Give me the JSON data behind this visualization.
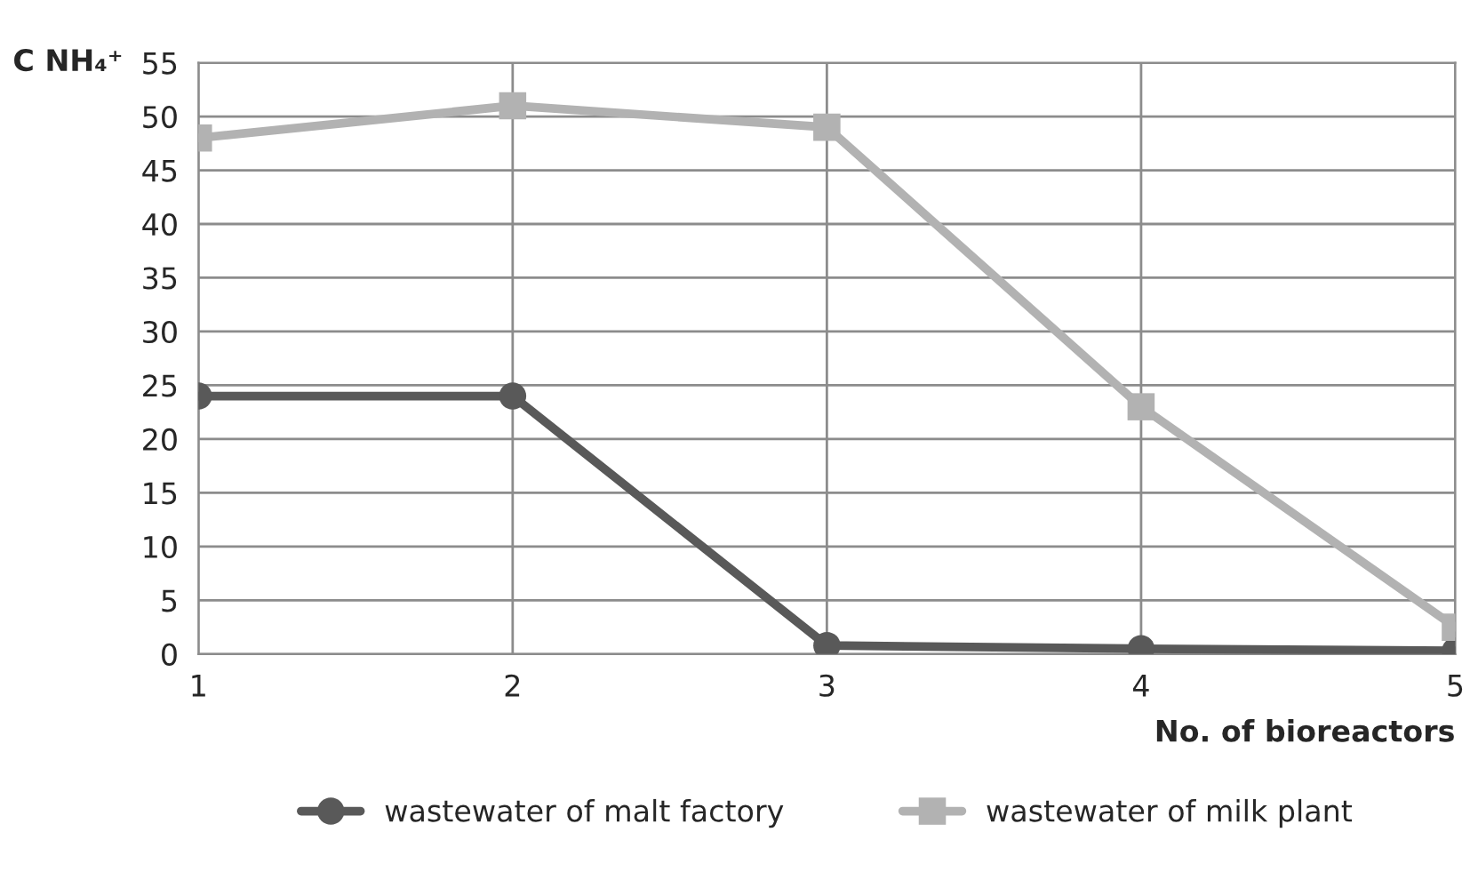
{
  "chart_data": {
    "type": "line",
    "ylabel": "C NH₄⁺",
    "xlabel": "No. of bioreactors",
    "x": [
      1,
      2,
      3,
      4,
      5
    ],
    "series": [
      {
        "name": "wastewater of malt factory",
        "color": "#595959",
        "marker": "circle",
        "values": [
          24,
          24,
          0.8,
          0.5,
          0.3
        ]
      },
      {
        "name": "wastewater of milk plant",
        "color": "#b2b2b2",
        "marker": "square",
        "values": [
          48,
          51,
          49,
          23,
          2.5
        ]
      }
    ],
    "xlim": [
      1,
      5
    ],
    "xticks": [
      1,
      2,
      3,
      4,
      5
    ],
    "ylim": [
      0,
      55
    ],
    "yticks": [
      0,
      5,
      10,
      15,
      20,
      25,
      30,
      35,
      40,
      45,
      50,
      55
    ],
    "grid": true,
    "legend": "bottom",
    "line_style": "solid"
  }
}
